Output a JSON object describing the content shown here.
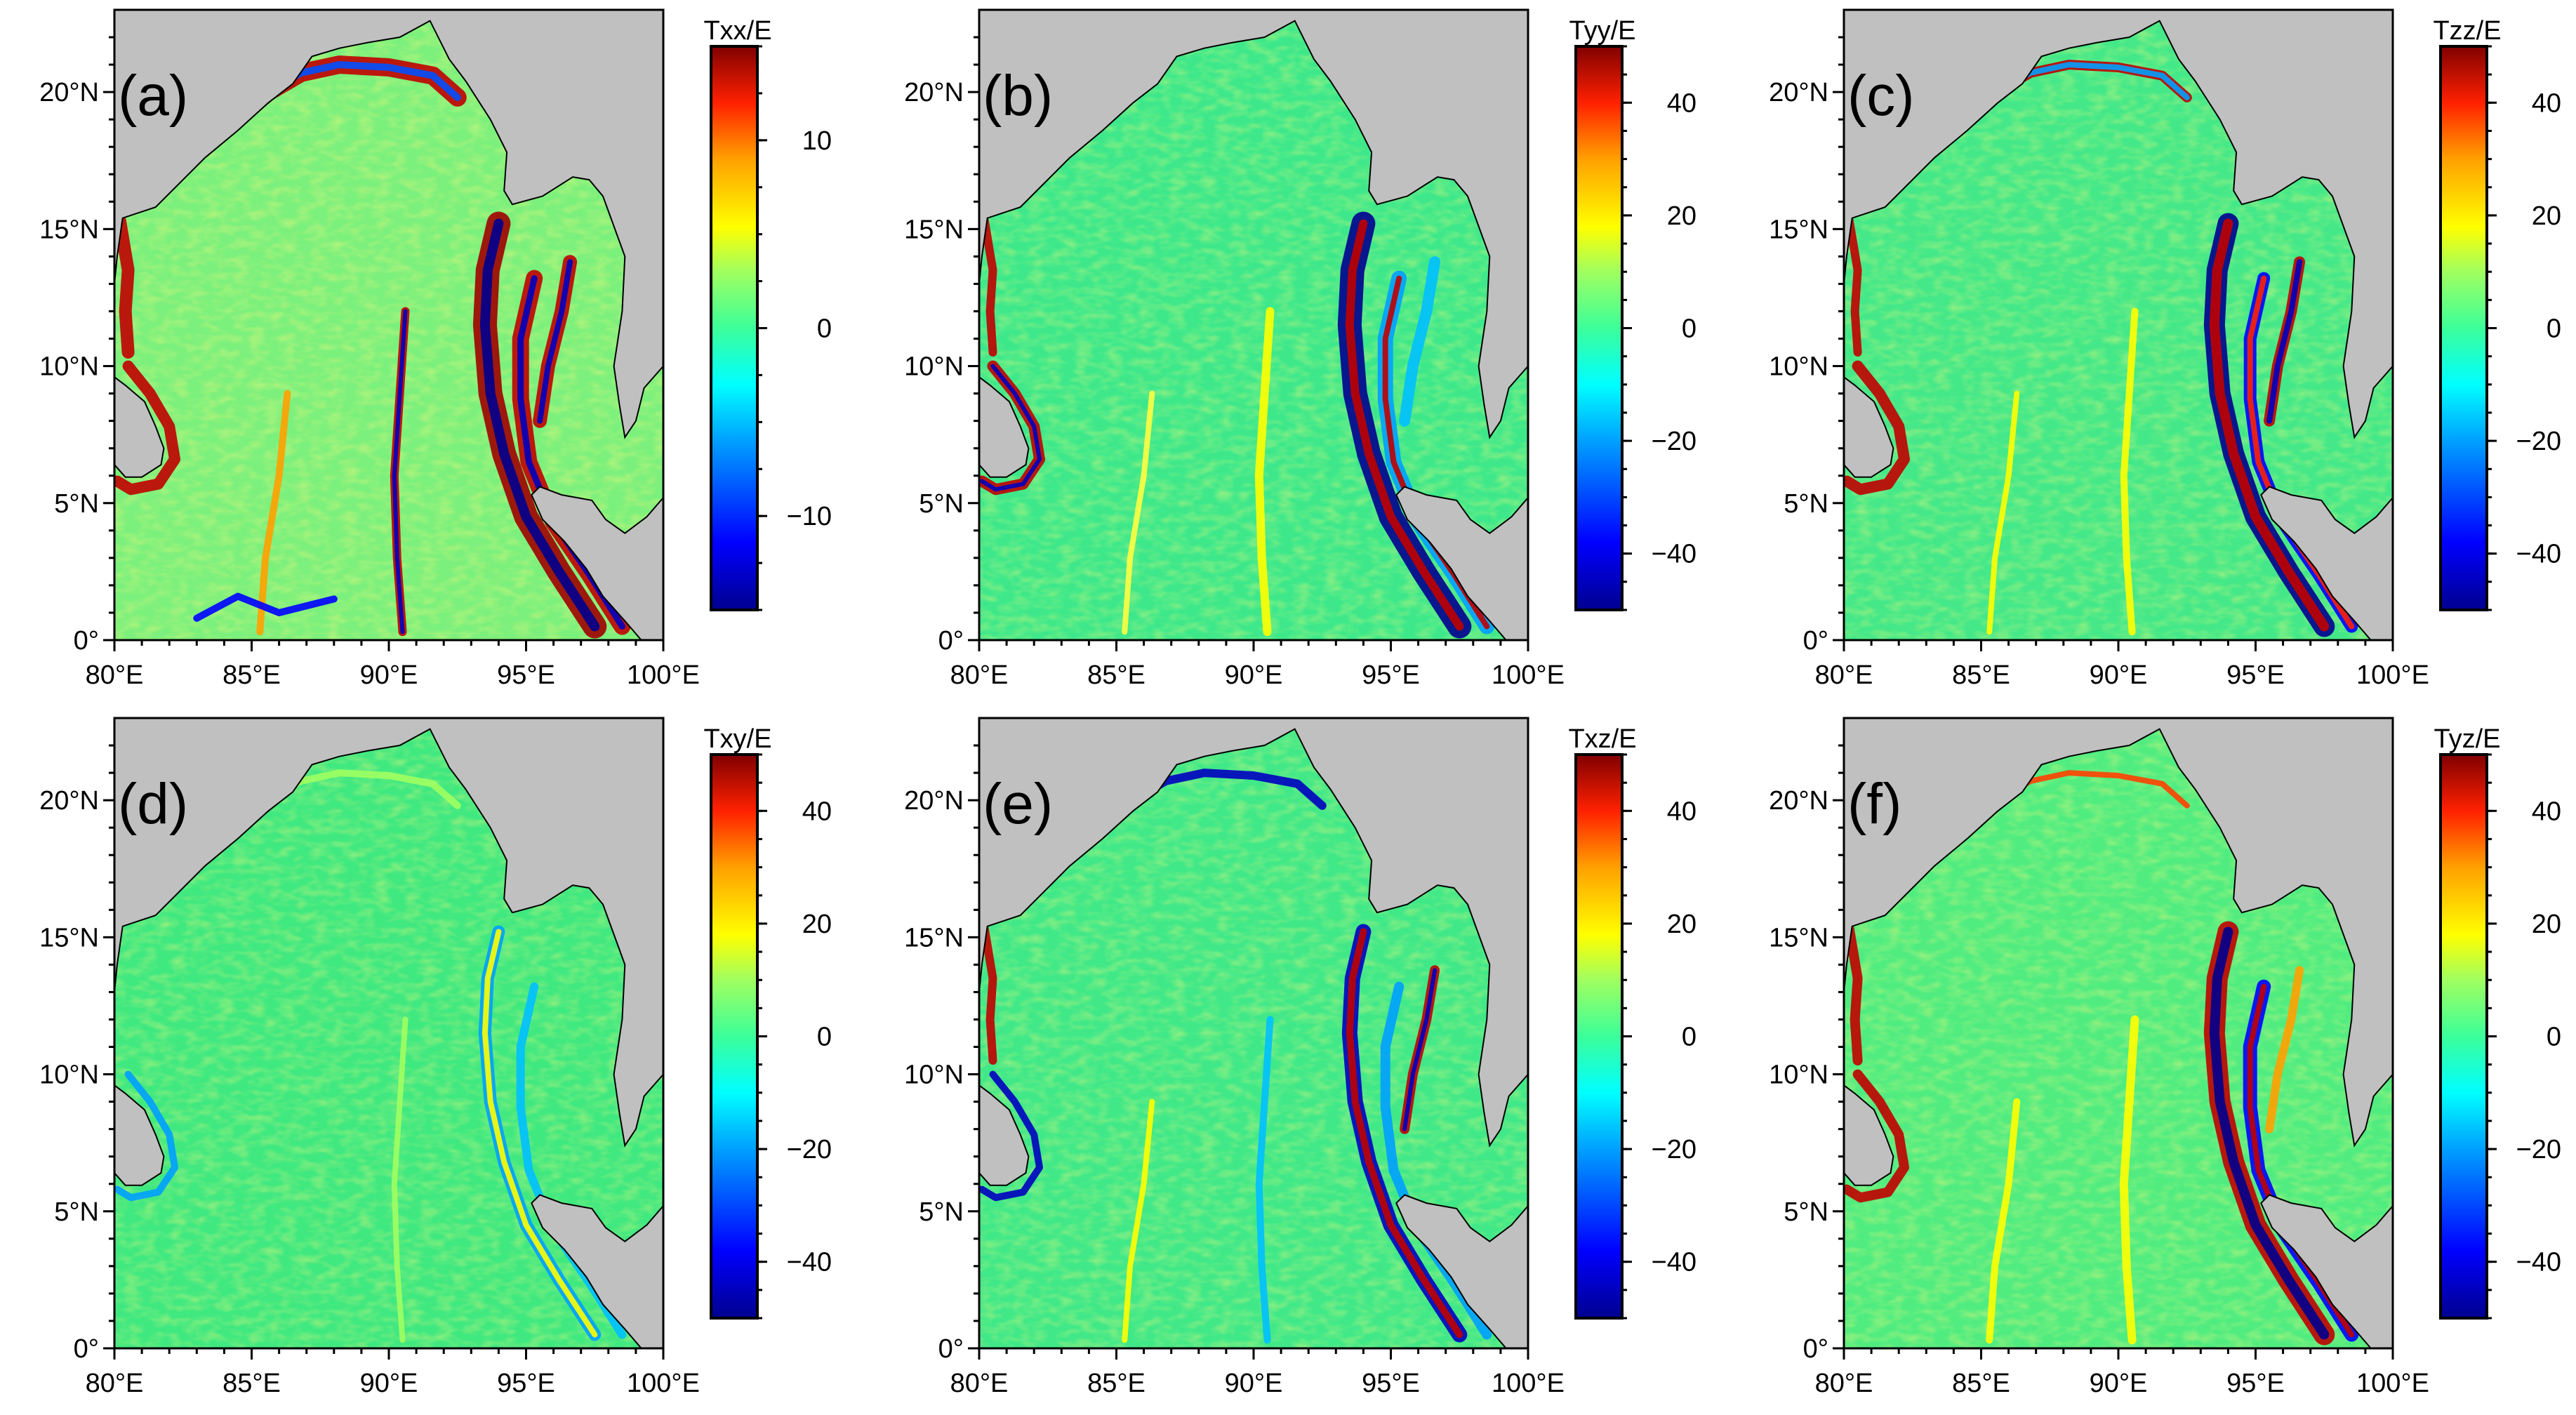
{
  "panels": [
    {
      "label": "(a)",
      "cb_title": "Txx/E",
      "cb_ticks": [
        "10",
        "0",
        "−10"
      ],
      "cb_tick_values": [
        10,
        0,
        -10
      ],
      "cb_range": [
        -15,
        15
      ]
    },
    {
      "label": "(b)",
      "cb_title": "Tyy/E",
      "cb_ticks": [
        "40",
        "20",
        "0",
        "−20",
        "−40"
      ],
      "cb_tick_values": [
        40,
        20,
        0,
        -20,
        -40
      ],
      "cb_range": [
        -50,
        50
      ]
    },
    {
      "label": "(c)",
      "cb_title": "Tzz/E",
      "cb_ticks": [
        "40",
        "20",
        "0",
        "−20",
        "−40"
      ],
      "cb_tick_values": [
        40,
        20,
        0,
        -20,
        -40
      ],
      "cb_range": [
        -50,
        50
      ]
    },
    {
      "label": "(d)",
      "cb_title": "Txy/E",
      "cb_ticks": [
        "40",
        "20",
        "0",
        "−20",
        "−40"
      ],
      "cb_tick_values": [
        40,
        20,
        0,
        -20,
        -40
      ],
      "cb_range": [
        -50,
        50
      ]
    },
    {
      "label": "(e)",
      "cb_title": "Txz/E",
      "cb_ticks": [
        "40",
        "20",
        "0",
        "−20",
        "−40"
      ],
      "cb_tick_values": [
        40,
        20,
        0,
        -20,
        -40
      ],
      "cb_range": [
        -50,
        50
      ]
    },
    {
      "label": "(f)",
      "cb_title": "Tyz/E",
      "cb_ticks": [
        "40",
        "20",
        "0",
        "−20",
        "−40"
      ],
      "cb_tick_values": [
        40,
        20,
        0,
        -20,
        -40
      ],
      "cb_range": [
        -50,
        50
      ]
    }
  ],
  "axes": {
    "lat_labels": [
      "20°N",
      "15°N",
      "10°N",
      "5°N",
      "0°"
    ],
    "lat_values": [
      20,
      15,
      10,
      5,
      0
    ],
    "lon_labels": [
      "80°E",
      "85°E",
      "90°E",
      "95°E",
      "100°E"
    ],
    "lon_values": [
      80,
      85,
      90,
      95,
      100
    ],
    "lat_range": [
      0,
      23
    ],
    "lon_range": [
      80,
      100
    ]
  },
  "colors": {
    "land": "#c0c0c0",
    "ocean_base": "#33e07a",
    "colormap": [
      "#00008f",
      "#0000ff",
      "#00a0ff",
      "#00ffff",
      "#3cff9a",
      "#80ff80",
      "#ffff00",
      "#ffa000",
      "#ff2000",
      "#c00000",
      "#800000"
    ]
  }
}
